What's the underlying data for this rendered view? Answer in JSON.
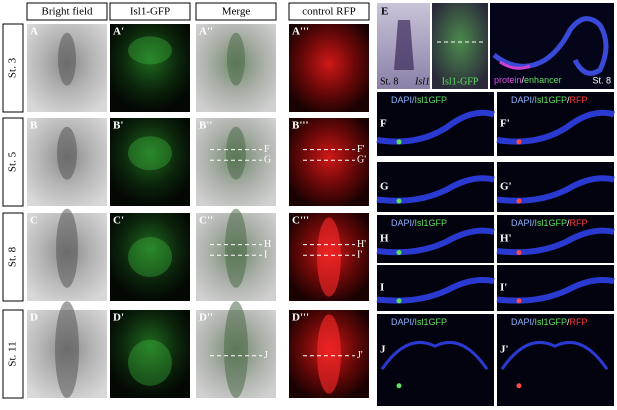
{
  "column_headers": [
    "Bright field",
    "Isl1-GFP",
    "Merge",
    "control RFP"
  ],
  "rows": [
    {
      "stage": "St. 3",
      "panels": [
        "A",
        "A'",
        "A''",
        "A'''"
      ]
    },
    {
      "stage": "St. 5",
      "panels": [
        "B",
        "B'",
        "B''",
        "B'''"
      ],
      "merge_lines": [
        "F",
        "G"
      ],
      "rfp_lines": [
        "F'",
        "G'"
      ]
    },
    {
      "stage": "St. 8",
      "panels": [
        "C",
        "C'",
        "C''",
        "C'''"
      ],
      "merge_lines": [
        "H",
        "I"
      ],
      "rfp_lines": [
        "H'",
        "I'"
      ]
    },
    {
      "stage": "St. 11",
      "panels": [
        "D",
        "D'",
        "D''",
        "D'''"
      ],
      "merge_lines": [
        "J"
      ],
      "rfp_lines": [
        "J'"
      ]
    }
  ],
  "panel_e": {
    "label": "E",
    "stage": "St. 8",
    "gene": "Isl1",
    "gfp_label": "Isl1-GFP",
    "legend_protein": "protein",
    "legend_separator": "/",
    "legend_enhancer": "enhancer",
    "section_stage": "St. 8"
  },
  "legend_left": [
    "DAPI/",
    "Isl1GFP"
  ],
  "legend_right": [
    "DAPI/",
    "Isl1GFP",
    "/",
    "RFP"
  ],
  "sections": [
    {
      "panels": [
        "F",
        "F'"
      ],
      "show_legend": true
    },
    {
      "panels": [
        "G",
        "G'"
      ],
      "show_legend": false
    },
    {
      "panels": [
        "H",
        "H'"
      ],
      "show_legend": true
    },
    {
      "panels": [
        "I",
        "I'"
      ],
      "show_legend": false
    },
    {
      "panels": [
        "J",
        "J'"
      ],
      "show_legend": true
    }
  ]
}
